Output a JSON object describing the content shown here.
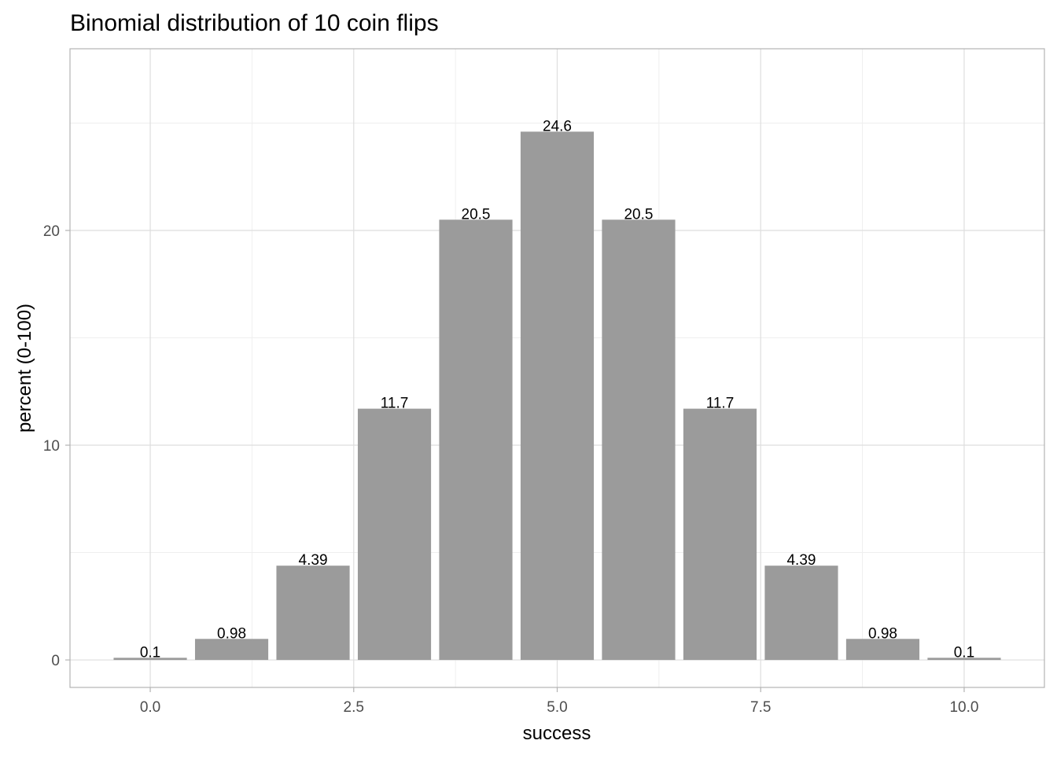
{
  "chart_data": {
    "type": "bar",
    "title": "Binomial distribution of 10 coin flips",
    "xlabel": "success",
    "ylabel": "percent (0-100)",
    "x": [
      0,
      1,
      2,
      3,
      4,
      5,
      6,
      7,
      8,
      9,
      10
    ],
    "values": [
      0.1,
      0.98,
      4.39,
      11.7,
      20.5,
      24.6,
      20.5,
      11.7,
      4.39,
      0.98,
      0.1
    ],
    "data_labels": [
      "0.1",
      "0.98",
      "4.39",
      "11.7",
      "20.5",
      "24.6",
      "20.5",
      "11.7",
      "4.39",
      "0.98",
      "0.1"
    ],
    "xlim": [
      -0.986,
      10.986
    ],
    "ylim": [
      -1.28,
      28.46
    ],
    "x_ticks": [
      0,
      2.5,
      5,
      7.5,
      10
    ],
    "x_tick_labels": [
      "0.0",
      "2.5",
      "5.0",
      "7.5",
      "10.0"
    ],
    "y_ticks": [
      0,
      10,
      20
    ],
    "y_tick_labels": [
      "0",
      "10",
      "20"
    ],
    "grid": true,
    "legend": "none",
    "colors": {
      "bar": "#9b9b9b",
      "grid_major": "#dedede",
      "grid_minor": "#efefef",
      "border": "#b3b3b3"
    }
  }
}
